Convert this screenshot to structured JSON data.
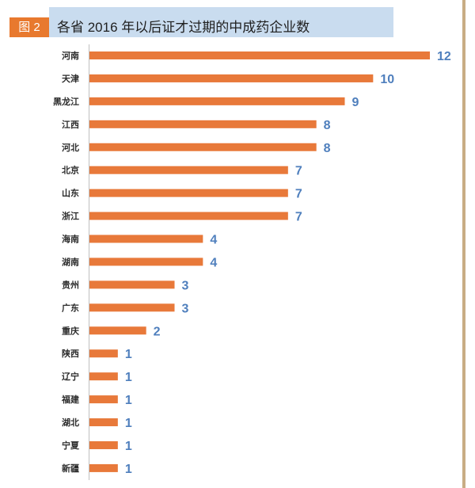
{
  "figure_label": "图 2",
  "colors": {
    "bar": "#e8793a",
    "value_label": "#4f7fbd",
    "banner": "#c9dcef",
    "figure_label_bg": "#e8792e",
    "right_rule": "#c8ad84",
    "axis": "#c0c0c0"
  },
  "chart_data": {
    "type": "bar",
    "orientation": "horizontal",
    "title": "各省 2016 年以后证才过期的中成药企业数",
    "categories": [
      "河南",
      "天津",
      "黑龙江",
      "江西",
      "河北",
      "北京",
      "山东",
      "浙江",
      "海南",
      "湖南",
      "贵州",
      "广东",
      "重庆",
      "陕西",
      "辽宁",
      "福建",
      "湖北",
      "宁夏",
      "新疆"
    ],
    "values": [
      12,
      10,
      9,
      8,
      8,
      7,
      7,
      7,
      4,
      4,
      3,
      3,
      2,
      1,
      1,
      1,
      1,
      1,
      1
    ],
    "grid": false
  }
}
